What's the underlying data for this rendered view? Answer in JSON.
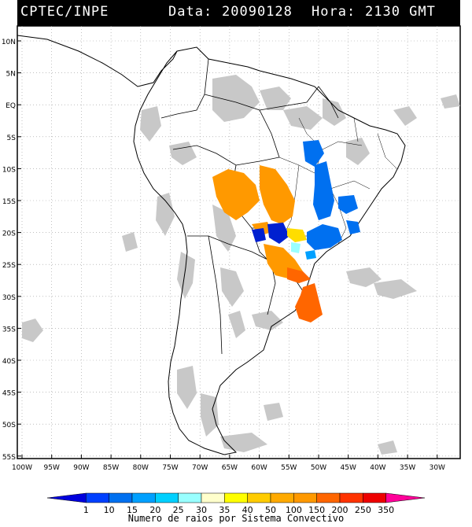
{
  "header": {
    "source": "CPTEC/INPE",
    "date_label": "Data:",
    "date": "20090128",
    "time_label": "Hora:",
    "time": "2130 GMT"
  },
  "map": {
    "lat_labels": [
      "10N",
      "5N",
      "EQ",
      "5S",
      "10S",
      "15S",
      "20S",
      "25S",
      "30S",
      "35S",
      "40S",
      "45S",
      "50S",
      "55S"
    ],
    "lon_labels": [
      "100W",
      "95W",
      "90W",
      "85W",
      "80W",
      "75W",
      "70W",
      "65W",
      "60W",
      "55W",
      "50W",
      "45W",
      "40W",
      "35W",
      "30W"
    ],
    "grid": true,
    "colors": {
      "land_outline": "#000000",
      "cloud": "#c8c8c8",
      "orange": "#ff9900",
      "dark_orange": "#ff6600",
      "blue": "#0070f0",
      "dark_blue": "#0020d0",
      "yellow": "#ffdd00",
      "cyan": "#99ffff"
    }
  },
  "colorbar": {
    "ticks": [
      "1",
      "10",
      "15",
      "20",
      "25",
      "30",
      "35",
      "40",
      "50",
      "100",
      "150",
      "200",
      "250",
      "350"
    ],
    "colors": [
      "#0000dd",
      "#0040ff",
      "#0070f0",
      "#00a0ff",
      "#00d0ff",
      "#99ffff",
      "#ffffcc",
      "#ffff00",
      "#ffcc00",
      "#ffaa00",
      "#ff9900",
      "#ff6600",
      "#ff3300",
      "#ee0000",
      "#ff0099"
    ],
    "caption": "Numero de raios por Sistema Convectivo"
  }
}
